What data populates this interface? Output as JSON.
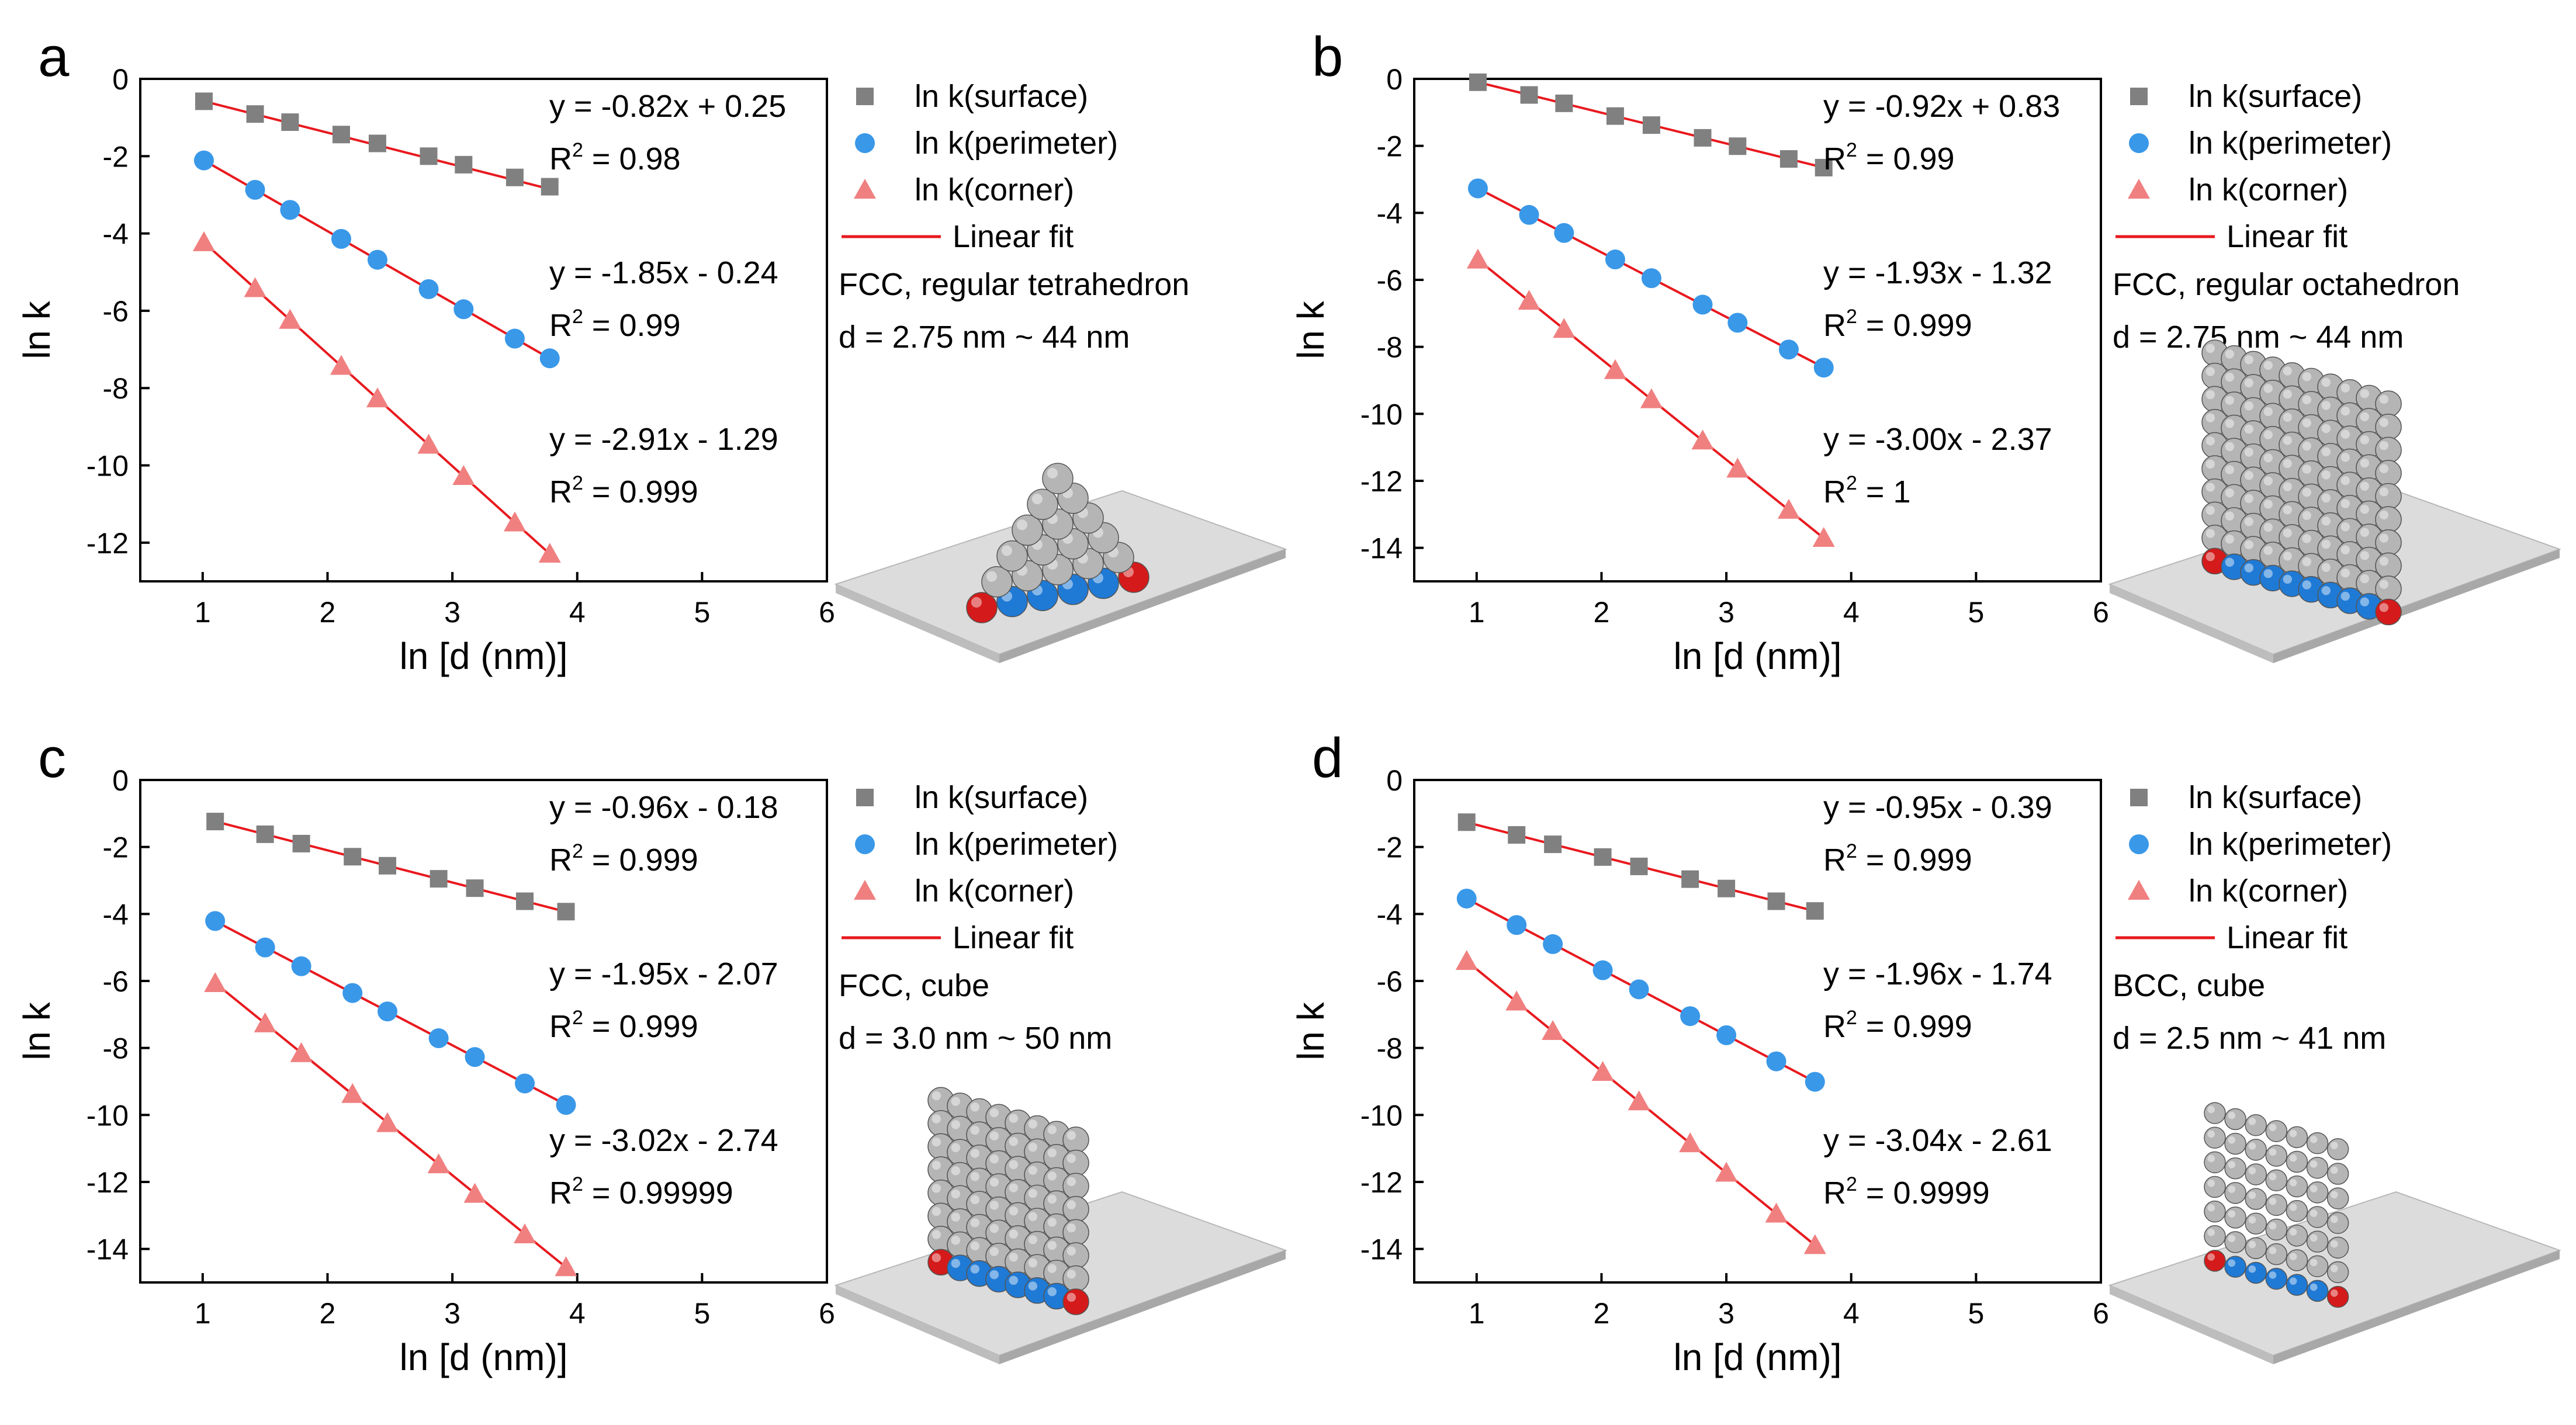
{
  "colors": {
    "surface": "#808080",
    "perimeter": "#3a98e8",
    "corner": "#f08080",
    "fit": "#e8191e"
  },
  "legend": [
    "ln k(surface)",
    "ln k(perimeter)",
    "ln k(corner)",
    "Linear fit"
  ],
  "chart_data": [
    {
      "type": "scatter",
      "panel": "a",
      "xlabel": "ln [d (nm)]",
      "ylabel": "ln k",
      "xlim": [
        0.5,
        6
      ],
      "ylim": [
        -13,
        0
      ],
      "xticks": [
        "1",
        "2",
        "3",
        "4",
        "5",
        "6"
      ],
      "yticks": [
        "0",
        "-2",
        "-4",
        "-6",
        "-8",
        "-10",
        "-12"
      ],
      "series": [
        {
          "name": "ln k(surface)",
          "marker": "square",
          "x": [
            1.01,
            1.42,
            1.7,
            2.11,
            2.4,
            2.81,
            3.09,
            3.5,
            3.78
          ],
          "y": [
            -0.58,
            -0.91,
            -1.12,
            -1.44,
            -1.67,
            -2.0,
            -2.22,
            -2.55,
            -2.79
          ]
        },
        {
          "name": "ln k(perimeter)",
          "marker": "circle",
          "x": [
            1.01,
            1.42,
            1.7,
            2.11,
            2.4,
            2.81,
            3.09,
            3.5,
            3.78
          ],
          "y": [
            -2.11,
            -2.87,
            -3.39,
            -4.14,
            -4.68,
            -5.44,
            -5.96,
            -6.72,
            -7.23
          ]
        },
        {
          "name": "ln k(corner)",
          "marker": "triangle",
          "x": [
            1.01,
            1.42,
            1.7,
            2.11,
            2.4,
            2.81,
            3.09,
            3.5,
            3.78
          ],
          "y": [
            -4.23,
            -5.42,
            -6.24,
            -7.43,
            -8.27,
            -9.47,
            -10.28,
            -11.48,
            -12.29
          ]
        }
      ],
      "fits": [
        {
          "slope": -0.82,
          "intercept": 0.25
        },
        {
          "slope": -1.85,
          "intercept": -0.24
        },
        {
          "slope": -2.91,
          "intercept": -1.29
        }
      ],
      "equations": [
        {
          "eq": "y = -0.82x + 0.25",
          "r2": " = 0.98"
        },
        {
          "eq": "y = -1.85x - 0.24",
          "r2": " = 0.99"
        },
        {
          "eq": "y = -2.91x - 1.29",
          "r2": " = 0.999"
        }
      ],
      "description": [
        "FCC, regular tetrahedron",
        "d = 2.75 nm ~ 44 nm"
      ]
    },
    {
      "type": "scatter",
      "panel": "b",
      "xlabel": "ln [d (nm)]",
      "ylabel": "ln k",
      "xlim": [
        0.5,
        6
      ],
      "ylim": [
        -15,
        0
      ],
      "xticks": [
        "1",
        "2",
        "3",
        "4",
        "5",
        "6"
      ],
      "yticks": [
        "0",
        "-2",
        "-4",
        "-6",
        "-8",
        "-10",
        "-12",
        "-14"
      ],
      "series": [
        {
          "name": "ln k(surface)",
          "marker": "square",
          "x": [
            1.01,
            1.42,
            1.7,
            2.11,
            2.4,
            2.81,
            3.09,
            3.5,
            3.78
          ],
          "y": [
            -0.1,
            -0.48,
            -0.73,
            -1.11,
            -1.38,
            -1.76,
            -2.01,
            -2.39,
            -2.65
          ]
        },
        {
          "name": "ln k(perimeter)",
          "marker": "circle",
          "x": [
            1.01,
            1.42,
            1.7,
            2.11,
            2.4,
            2.81,
            3.09,
            3.5,
            3.78
          ],
          "y": [
            -3.27,
            -4.06,
            -4.6,
            -5.39,
            -5.95,
            -6.74,
            -7.28,
            -8.08,
            -8.62
          ]
        },
        {
          "name": "ln k(corner)",
          "marker": "triangle",
          "x": [
            1.01,
            1.42,
            1.7,
            2.11,
            2.4,
            2.81,
            3.09,
            3.5,
            3.78
          ],
          "y": [
            -5.4,
            -6.63,
            -7.47,
            -8.7,
            -9.57,
            -10.8,
            -11.64,
            -12.87,
            -13.71
          ]
        }
      ],
      "fits": [
        {
          "slope": -0.92,
          "intercept": 0.83
        },
        {
          "slope": -1.93,
          "intercept": -1.32
        },
        {
          "slope": -3.0,
          "intercept": -2.37
        }
      ],
      "equations": [
        {
          "eq": "y = -0.92x + 0.83",
          "r2": " = 0.99"
        },
        {
          "eq": "y = -1.93x - 1.32",
          "r2": " = 0.999"
        },
        {
          "eq": "y = -3.00x - 2.37",
          "r2": " = 1"
        }
      ],
      "description": [
        "FCC, regular octahedron",
        "d = 2.75 nm ~ 44 nm"
      ]
    },
    {
      "type": "scatter",
      "panel": "c",
      "xlabel": "ln [d (nm)]",
      "ylabel": "ln k",
      "xlim": [
        0.5,
        6
      ],
      "ylim": [
        -15,
        0
      ],
      "xticks": [
        "1",
        "2",
        "3",
        "4",
        "5",
        "6"
      ],
      "yticks": [
        "0",
        "-2",
        "-4",
        "-6",
        "-8",
        "-10",
        "-12",
        "-14"
      ],
      "series": [
        {
          "name": "ln k(surface)",
          "marker": "square",
          "x": [
            1.1,
            1.5,
            1.79,
            2.2,
            2.48,
            2.89,
            3.18,
            3.58,
            3.91
          ],
          "y": [
            -1.24,
            -1.62,
            -1.9,
            -2.29,
            -2.56,
            -2.95,
            -3.23,
            -3.62,
            -3.93
          ]
        },
        {
          "name": "ln k(perimeter)",
          "marker": "circle",
          "x": [
            1.1,
            1.5,
            1.79,
            2.2,
            2.48,
            2.89,
            3.18,
            3.58,
            3.91
          ],
          "y": [
            -4.21,
            -5.0,
            -5.56,
            -6.36,
            -6.91,
            -7.71,
            -8.27,
            -9.06,
            -9.7
          ]
        },
        {
          "name": "ln k(corner)",
          "marker": "triangle",
          "x": [
            1.1,
            1.5,
            1.79,
            2.2,
            2.48,
            2.89,
            3.18,
            3.58,
            3.91
          ],
          "y": [
            -6.07,
            -7.27,
            -8.16,
            -9.38,
            -10.25,
            -11.48,
            -12.36,
            -13.57,
            -14.55
          ]
        }
      ],
      "fits": [
        {
          "slope": -0.96,
          "intercept": -0.18
        },
        {
          "slope": -1.95,
          "intercept": -2.07
        },
        {
          "slope": -3.02,
          "intercept": -2.74
        }
      ],
      "equations": [
        {
          "eq": "y = -0.96x - 0.18",
          "r2": " = 0.999"
        },
        {
          "eq": "y = -1.95x - 2.07",
          "r2": " = 0.999"
        },
        {
          "eq": "y = -3.02x - 2.74",
          "r2": " = 0.99999"
        }
      ],
      "description": [
        "FCC, cube",
        "d = 3.0 nm ~ 50 nm"
      ]
    },
    {
      "type": "scatter",
      "panel": "d",
      "xlabel": "ln [d (nm)]",
      "ylabel": "ln k",
      "xlim": [
        0.5,
        6
      ],
      "ylim": [
        -15,
        0
      ],
      "xticks": [
        "1",
        "2",
        "3",
        "4",
        "5",
        "6"
      ],
      "yticks": [
        "0",
        "-2",
        "-4",
        "-6",
        "-8",
        "-10",
        "-12",
        "-14"
      ],
      "series": [
        {
          "name": "ln k(surface)",
          "marker": "square",
          "x": [
            0.92,
            1.32,
            1.61,
            2.01,
            2.3,
            2.71,
            3.0,
            3.4,
            3.71
          ],
          "y": [
            -1.26,
            -1.64,
            -1.92,
            -2.3,
            -2.58,
            -2.96,
            -3.24,
            -3.62,
            -3.91
          ]
        },
        {
          "name": "ln k(perimeter)",
          "marker": "circle",
          "x": [
            0.92,
            1.32,
            1.61,
            2.01,
            2.3,
            2.71,
            3.0,
            3.4,
            3.71
          ],
          "y": [
            -3.54,
            -4.33,
            -4.9,
            -5.68,
            -6.25,
            -7.05,
            -7.62,
            -8.4,
            -9.01
          ]
        },
        {
          "name": "ln k(corner)",
          "marker": "triangle",
          "x": [
            0.92,
            1.32,
            1.61,
            2.01,
            2.3,
            2.71,
            3.0,
            3.4,
            3.71
          ],
          "y": [
            -5.41,
            -6.62,
            -7.5,
            -8.72,
            -9.6,
            -10.85,
            -11.73,
            -12.95,
            -13.89
          ]
        }
      ],
      "fits": [
        {
          "slope": -0.95,
          "intercept": -0.39
        },
        {
          "slope": -1.96,
          "intercept": -1.74
        },
        {
          "slope": -3.04,
          "intercept": -2.61
        }
      ],
      "equations": [
        {
          "eq": "y = -0.95x - 0.39",
          "r2": " = 0.999"
        },
        {
          "eq": "y = -1.96x - 1.74",
          "r2": " = 0.999"
        },
        {
          "eq": "y = -3.04x - 2.61",
          "r2": " = 0.9999"
        }
      ],
      "description": [
        "BCC, cube",
        "d = 2.5 nm ~ 41 nm"
      ]
    }
  ]
}
